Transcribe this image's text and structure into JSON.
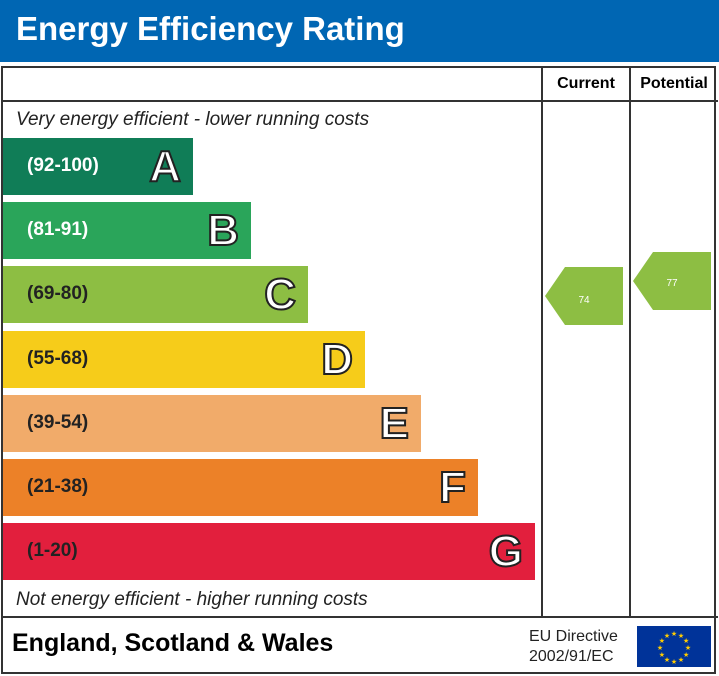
{
  "title": "Energy Efficiency Rating",
  "columns": {
    "current": "Current",
    "potential": "Potential"
  },
  "top_note": "Very energy efficient - lower running costs",
  "bottom_note": "Not energy efficient - higher running costs",
  "chart_data": {
    "type": "bar",
    "bands": [
      {
        "range": "(92-100)",
        "letter": "A",
        "color": "#107d57"
      },
      {
        "range": "(81-91)",
        "letter": "B",
        "color": "#2aa55a"
      },
      {
        "range": "(69-80)",
        "letter": "C",
        "color": "#8dbe43"
      },
      {
        "range": "(55-68)",
        "letter": "D",
        "color": "#f6cc1a"
      },
      {
        "range": "(39-54)",
        "letter": "E",
        "color": "#f1ab6a"
      },
      {
        "range": "(21-38)",
        "letter": "F",
        "color": "#ec8128"
      },
      {
        "range": "(1-20)",
        "letter": "G",
        "color": "#e21f3d"
      }
    ],
    "current": {
      "value": "74",
      "band": "C",
      "color": "#8dbe43"
    },
    "potential": {
      "value": "77",
      "band": "C",
      "color": "#8dbe43"
    }
  },
  "footer": {
    "region": "England, Scotland & Wales",
    "directive_line1": "EU Directive",
    "directive_line2": "2002/91/EC",
    "flag_icon": "eu-flag-icon"
  }
}
